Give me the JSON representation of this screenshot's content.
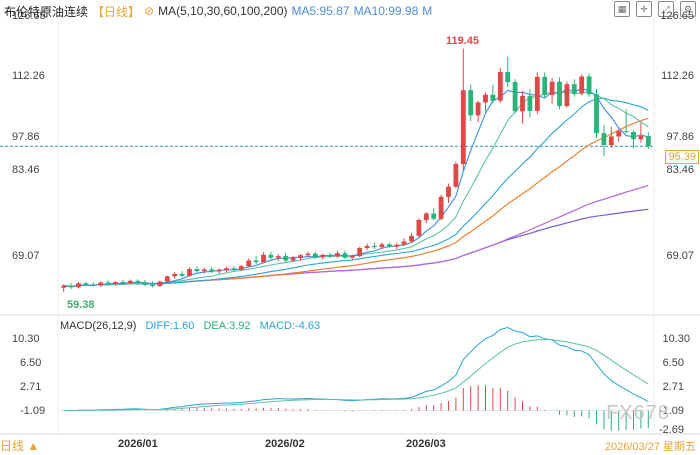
{
  "header": {
    "title": "布伦特原油连续",
    "period": "【日线】",
    "ma_label": "MA(5,10,30,60,100,200)",
    "ma5": "MA5:95.87",
    "ma10": "MA10:99.98",
    "ma_more": "M"
  },
  "toolbar": {
    "icons": [
      "grid-icon",
      "crosshair-icon",
      "expand-icon",
      "settings-icon"
    ]
  },
  "price_axis": {
    "ticks": [
      "126.65",
      "112.26",
      "97.86",
      "83.46",
      "69.07"
    ]
  },
  "current_price": "95.39",
  "high_label": "119.45",
  "low_label": "59.38",
  "macd": {
    "label": "MACD(26,12,9)",
    "diff": "DIFF:1.60",
    "dea": "DEA:3.92",
    "macd": "MACD:-4.63",
    "ticks_left": [
      "10.30",
      "6.50",
      "2.71",
      "-1.09"
    ],
    "ticks_right": [
      "10.30",
      "6.50",
      "2.71",
      "-1.09",
      "-2.69"
    ]
  },
  "x_axis": {
    "ticks": [
      "2026/01",
      "2026/02",
      "2026/03"
    ]
  },
  "period_selector": "日线",
  "date_label": "2026/03/27 星期五",
  "watermark": "FX678",
  "colors": {
    "up": "#e04848",
    "down": "#2bb37a",
    "ma5": "#3a8ee6",
    "ma10": "#5cc3a7",
    "ma30": "#2aa3d9",
    "ma60": "#f07f2f",
    "ma100": "#b667d9",
    "ma200": "#7b5cd6",
    "diff": "#2aa3d9",
    "dea": "#5cc3a7"
  },
  "chart_data": {
    "type": "candlestick",
    "title": "布伦特原油连续",
    "ylim": [
      55,
      128
    ],
    "candles": [
      [
        60.5,
        61.4,
        59.4,
        61.0
      ],
      [
        61.0,
        61.7,
        60.2,
        60.6
      ],
      [
        60.6,
        61.9,
        60.3,
        61.6
      ],
      [
        61.6,
        62.0,
        61.0,
        61.3
      ],
      [
        61.3,
        61.8,
        60.8,
        61.1
      ],
      [
        61.1,
        62.0,
        60.7,
        61.8
      ],
      [
        61.8,
        62.3,
        61.0,
        61.4
      ],
      [
        61.4,
        62.1,
        61.0,
        61.9
      ],
      [
        61.9,
        62.4,
        61.3,
        61.6
      ],
      [
        61.6,
        62.5,
        61.4,
        62.2
      ],
      [
        62.2,
        62.6,
        61.4,
        61.8
      ],
      [
        61.8,
        62.4,
        60.9,
        61.2
      ],
      [
        61.2,
        62.1,
        60.6,
        60.9
      ],
      [
        60.9,
        62.3,
        60.7,
        62.0
      ],
      [
        62.0,
        63.5,
        61.8,
        63.3
      ],
      [
        63.3,
        64.4,
        62.7,
        63.9
      ],
      [
        63.9,
        64.6,
        63.1,
        63.4
      ],
      [
        63.4,
        65.5,
        63.2,
        65.1
      ],
      [
        65.1,
        65.8,
        64.2,
        64.6
      ],
      [
        64.6,
        65.4,
        64.0,
        65.0
      ],
      [
        65.0,
        65.6,
        64.1,
        64.5
      ],
      [
        64.5,
        65.3,
        63.9,
        64.9
      ],
      [
        64.9,
        65.7,
        64.3,
        65.3
      ],
      [
        65.3,
        65.8,
        64.6,
        64.9
      ],
      [
        64.9,
        66.1,
        64.7,
        65.8
      ],
      [
        65.8,
        67.7,
        65.5,
        67.2
      ],
      [
        67.2,
        68.3,
        66.3,
        66.8
      ],
      [
        66.8,
        69.2,
        66.5,
        68.6
      ],
      [
        68.6,
        69.3,
        67.5,
        67.9
      ],
      [
        67.9,
        68.7,
        67.1,
        68.3
      ],
      [
        68.3,
        69.1,
        66.7,
        67.2
      ],
      [
        67.2,
        68.4,
        66.9,
        67.9
      ],
      [
        67.9,
        68.8,
        67.2,
        68.5
      ],
      [
        68.5,
        69.4,
        68.0,
        68.9
      ],
      [
        68.9,
        69.3,
        67.6,
        68.1
      ],
      [
        68.1,
        68.9,
        67.5,
        68.6
      ],
      [
        68.6,
        69.2,
        67.8,
        68.2
      ],
      [
        68.2,
        69.5,
        67.9,
        69.0
      ],
      [
        69.0,
        69.6,
        67.6,
        67.9
      ],
      [
        67.9,
        68.6,
        67.3,
        68.3
      ],
      [
        68.3,
        70.6,
        68.0,
        70.3
      ],
      [
        70.3,
        71.4,
        69.8,
        70.8
      ],
      [
        70.8,
        71.6,
        70.0,
        70.5
      ],
      [
        70.5,
        71.7,
        70.2,
        71.2
      ],
      [
        71.2,
        71.6,
        70.3,
        70.6
      ],
      [
        70.6,
        71.6,
        70.0,
        71.1
      ],
      [
        71.1,
        72.6,
        70.8,
        71.9
      ],
      [
        71.9,
        74.0,
        71.6,
        73.3
      ],
      [
        73.3,
        77.6,
        73.0,
        77.2
      ],
      [
        77.2,
        79.2,
        76.4,
        78.8
      ],
      [
        78.8,
        80.1,
        77.1,
        77.5
      ],
      [
        77.5,
        83.4,
        77.1,
        82.9
      ],
      [
        82.9,
        86.2,
        81.4,
        85.4
      ],
      [
        85.4,
        91.6,
        85.0,
        91.0
      ],
      [
        91.0,
        119.5,
        89.3,
        109.2
      ],
      [
        109.2,
        110.6,
        101.6,
        103.0
      ],
      [
        103.0,
        106.6,
        101.3,
        106.2
      ],
      [
        106.2,
        108.6,
        104.0,
        108.1
      ],
      [
        108.1,
        110.6,
        106.0,
        106.6
      ],
      [
        106.6,
        114.7,
        106.1,
        113.7
      ],
      [
        113.7,
        117.5,
        110.0,
        111.2
      ],
      [
        111.2,
        111.9,
        103.5,
        104.0
      ],
      [
        104.0,
        109.0,
        101.0,
        107.8
      ],
      [
        107.8,
        109.5,
        102.5,
        104.1
      ],
      [
        104.1,
        113.6,
        103.4,
        112.5
      ],
      [
        112.5,
        113.6,
        107.3,
        108.0
      ],
      [
        108.0,
        112.2,
        105.9,
        111.3
      ],
      [
        111.3,
        112.4,
        104.5,
        105.3
      ],
      [
        105.3,
        111.4,
        104.9,
        110.7
      ],
      [
        110.7,
        111.9,
        107.6,
        108.4
      ],
      [
        108.4,
        113.1,
        107.9,
        112.6
      ],
      [
        112.6,
        113.3,
        107.6,
        108.2
      ],
      [
        108.2,
        109.5,
        97.4,
        98.6
      ],
      [
        98.6,
        100.6,
        92.9,
        95.7
      ],
      [
        95.7,
        100.2,
        95.0,
        97.8
      ],
      [
        97.8,
        99.6,
        96.5,
        99.1
      ],
      [
        99.1,
        104.5,
        98.5,
        98.9
      ],
      [
        98.9,
        99.3,
        94.9,
        97.1
      ],
      [
        97.1,
        101.3,
        96.3,
        97.9
      ],
      [
        97.9,
        98.9,
        94.7,
        95.4
      ]
    ],
    "ma_values": [
      {
        "name": "MA5",
        "value": 95.87
      },
      {
        "name": "MA10",
        "value": 99.98
      }
    ],
    "high": 119.45,
    "low": 59.38,
    "last": 95.39
  }
}
